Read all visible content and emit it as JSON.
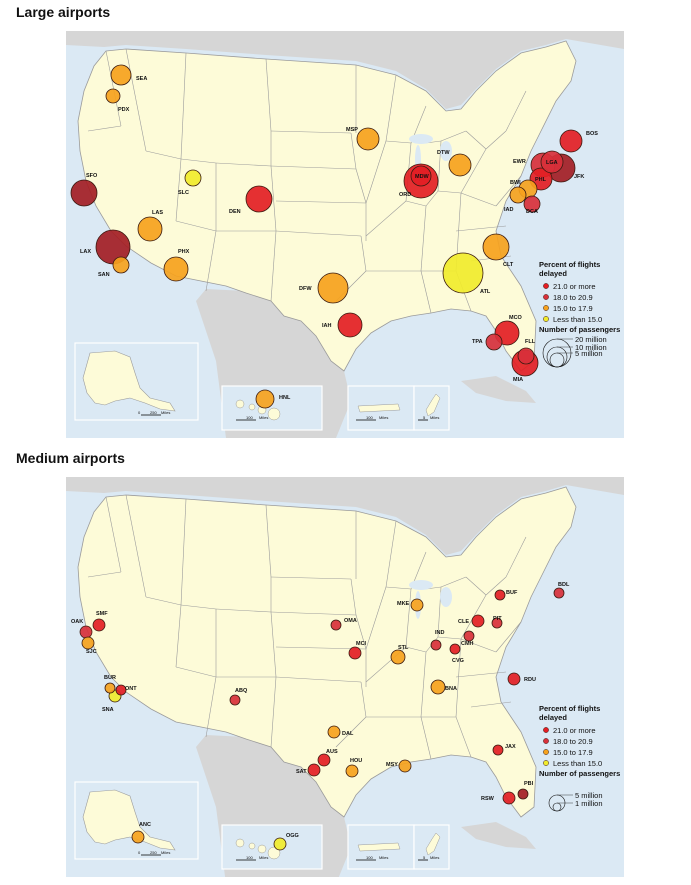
{
  "colors": {
    "water": "#dbe9f4",
    "land_us": "#fdfbd8",
    "land_other": "#d6d6d6",
    "border": "#9b9b9b",
    "cat_21plus": "#e31e24",
    "cat_21plus_dark": "#a31d24",
    "cat_18_20": "#d8303a",
    "cat_15_17": "#f6a21d",
    "cat_lt15": "#f1eb2c"
  },
  "large": {
    "title": "Large airports",
    "legend": {
      "title": "Percent of flights delayed",
      "cats": [
        "21.0 or more",
        "18.0 to 20.9",
        "15.0 to 17.9",
        "Less than 15.0"
      ],
      "size_title": "Number of passengers",
      "sizes": [
        "20 million",
        "10 million",
        "5 million"
      ]
    },
    "airports": [
      {
        "code": "SEA",
        "size": 10,
        "cat": "15_17"
      },
      {
        "code": "PDX",
        "size": 7,
        "cat": "15_17"
      },
      {
        "code": "SFO",
        "size": 13,
        "cat": "21plus_dark"
      },
      {
        "code": "LAX",
        "size": 17,
        "cat": "21plus_dark"
      },
      {
        "code": "SAN",
        "size": 8,
        "cat": "15_17"
      },
      {
        "code": "LAS",
        "size": 12,
        "cat": "15_17"
      },
      {
        "code": "PHX",
        "size": 12,
        "cat": "15_17"
      },
      {
        "code": "SLC",
        "size": 8,
        "cat": "lt15"
      },
      {
        "code": "DEN",
        "size": 13,
        "cat": "21plus"
      },
      {
        "code": "DFW",
        "size": 15,
        "cat": "15_17"
      },
      {
        "code": "IAH",
        "size": 12,
        "cat": "21plus"
      },
      {
        "code": "MSP",
        "size": 11,
        "cat": "15_17"
      },
      {
        "code": "ORD",
        "size": 17,
        "cat": "21plus"
      },
      {
        "code": "MDW",
        "size": 10,
        "cat": "21plus"
      },
      {
        "code": "DTW",
        "size": 11,
        "cat": "15_17"
      },
      {
        "code": "ATL",
        "size": 20,
        "cat": "lt15"
      },
      {
        "code": "CLT",
        "size": 13,
        "cat": "15_17"
      },
      {
        "code": "MCO",
        "size": 12,
        "cat": "21plus"
      },
      {
        "code": "TPA",
        "size": 8,
        "cat": "18_20"
      },
      {
        "code": "FLL",
        "size": 8,
        "cat": "18_20"
      },
      {
        "code": "MIA",
        "size": 13,
        "cat": "21plus"
      },
      {
        "code": "IAD",
        "size": 8,
        "cat": "15_17"
      },
      {
        "code": "DCA",
        "size": 8,
        "cat": "18_20"
      },
      {
        "code": "BWI",
        "size": 9,
        "cat": "15_17"
      },
      {
        "code": "PHL",
        "size": 11,
        "cat": "21plus"
      },
      {
        "code": "EWR",
        "size": 12,
        "cat": "18_20"
      },
      {
        "code": "LGA",
        "size": 11,
        "cat": "18_20"
      },
      {
        "code": "JFK",
        "size": 14,
        "cat": "21plus_dark"
      },
      {
        "code": "BOS",
        "size": 11,
        "cat": "21plus"
      },
      {
        "code": "HNL",
        "size": 9,
        "cat": "15_17"
      }
    ]
  },
  "medium": {
    "title": "Medium airports",
    "legend": {
      "title": "Percent of flights delayed",
      "cats": [
        "21.0 or more",
        "18.0 to 20.9",
        "15.0 to 17.9",
        "Less than 15.0"
      ],
      "size_title": "Number of passengers",
      "sizes": [
        "5 million",
        "1 million"
      ]
    },
    "airports": [
      {
        "code": "SMF",
        "size": 6,
        "cat": "21plus"
      },
      {
        "code": "OAK",
        "size": 6,
        "cat": "18_20"
      },
      {
        "code": "SJC",
        "size": 6,
        "cat": "15_17"
      },
      {
        "code": "BUR",
        "size": 5,
        "cat": "15_17"
      },
      {
        "code": "ONT",
        "size": 5,
        "cat": "21plus"
      },
      {
        "code": "SNA",
        "size": 6,
        "cat": "lt15"
      },
      {
        "code": "ABQ",
        "size": 5,
        "cat": "18_20"
      },
      {
        "code": "OMA",
        "size": 5,
        "cat": "18_20"
      },
      {
        "code": "MCI",
        "size": 6,
        "cat": "21plus"
      },
      {
        "code": "DAL",
        "size": 6,
        "cat": "15_17"
      },
      {
        "code": "AUS",
        "size": 6,
        "cat": "21plus"
      },
      {
        "code": "SAT",
        "size": 6,
        "cat": "21plus"
      },
      {
        "code": "HOU",
        "size": 6,
        "cat": "15_17"
      },
      {
        "code": "MSY",
        "size": 6,
        "cat": "15_17"
      },
      {
        "code": "STL",
        "size": 7,
        "cat": "15_17"
      },
      {
        "code": "MKE",
        "size": 6,
        "cat": "15_17"
      },
      {
        "code": "IND",
        "size": 5,
        "cat": "18_20"
      },
      {
        "code": "CLE",
        "size": 6,
        "cat": "21plus"
      },
      {
        "code": "CMH",
        "size": 5,
        "cat": "18_20"
      },
      {
        "code": "CVG",
        "size": 5,
        "cat": "21plus"
      },
      {
        "code": "BNA",
        "size": 7,
        "cat": "15_17"
      },
      {
        "code": "PIT",
        "size": 5,
        "cat": "18_20"
      },
      {
        "code": "BUF",
        "size": 5,
        "cat": "21plus"
      },
      {
        "code": "BDL",
        "size": 5,
        "cat": "18_20"
      },
      {
        "code": "RDU",
        "size": 6,
        "cat": "21plus"
      },
      {
        "code": "JAX",
        "size": 5,
        "cat": "21plus"
      },
      {
        "code": "PBI",
        "size": 5,
        "cat": "21plus_dark"
      },
      {
        "code": "RSW",
        "size": 6,
        "cat": "21plus"
      },
      {
        "code": "ANC",
        "size": 6,
        "cat": "15_17"
      },
      {
        "code": "OGG",
        "size": 6,
        "cat": "lt15"
      }
    ]
  },
  "scale_labels": [
    "0",
    "250",
    "Miles",
    "100",
    "Miles",
    "100",
    "Miles",
    "5",
    "Miles"
  ]
}
